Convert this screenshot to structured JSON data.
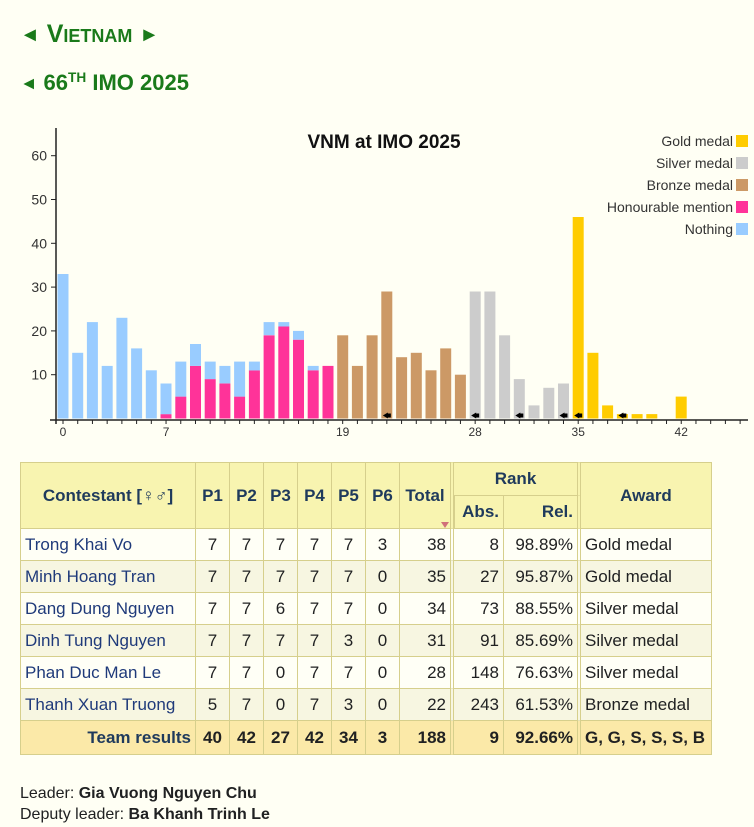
{
  "header": {
    "country": "Vietnam",
    "country_prev_arrow": "◄",
    "country_next_arrow": "►",
    "olympiad_prev_arrow": "◄",
    "olympiad_ordinal": "66",
    "olympiad_ordinal_suffix": "TH",
    "olympiad_name": "IMO 2025"
  },
  "chart_data": {
    "type": "bar",
    "stacked": true,
    "title": "VNM at IMO 2025",
    "xlabel": "",
    "ylabel": "",
    "xlim": [
      0,
      46
    ],
    "ylim": [
      0,
      65
    ],
    "x_tick_labels": [
      0,
      7,
      19,
      28,
      35,
      42
    ],
    "y_tick_labels": [
      10,
      20,
      30,
      40,
      50,
      60
    ],
    "grid": false,
    "legend_position": "top-right",
    "x": [
      0,
      1,
      2,
      3,
      4,
      5,
      6,
      7,
      8,
      9,
      10,
      11,
      12,
      13,
      14,
      15,
      16,
      17,
      18,
      19,
      20,
      21,
      22,
      23,
      24,
      25,
      26,
      27,
      28,
      29,
      30,
      31,
      32,
      33,
      34,
      35,
      36,
      37,
      38,
      39,
      40,
      41,
      42
    ],
    "series": [
      {
        "name": "Gold medal",
        "color": "#ffcc00",
        "values": [
          0,
          0,
          0,
          0,
          0,
          0,
          0,
          0,
          0,
          0,
          0,
          0,
          0,
          0,
          0,
          0,
          0,
          0,
          0,
          0,
          0,
          0,
          0,
          0,
          0,
          0,
          0,
          0,
          0,
          0,
          0,
          0,
          0,
          0,
          0,
          46,
          15,
          3,
          1,
          1,
          1,
          0,
          5
        ]
      },
      {
        "name": "Silver medal",
        "color": "#cccccc",
        "values": [
          0,
          0,
          0,
          0,
          0,
          0,
          0,
          0,
          0,
          0,
          0,
          0,
          0,
          0,
          0,
          0,
          0,
          0,
          0,
          0,
          0,
          0,
          0,
          0,
          0,
          0,
          0,
          0,
          29,
          29,
          19,
          9,
          3,
          7,
          8,
          0,
          0,
          0,
          0,
          0,
          0,
          0,
          0
        ]
      },
      {
        "name": "Bronze medal",
        "color": "#cc9966",
        "values": [
          0,
          0,
          0,
          0,
          0,
          0,
          0,
          0,
          0,
          0,
          0,
          0,
          0,
          0,
          0,
          0,
          0,
          0,
          0,
          19,
          12,
          19,
          29,
          14,
          15,
          11,
          16,
          10,
          0,
          0,
          0,
          0,
          0,
          0,
          0,
          0,
          0,
          0,
          0,
          0,
          0,
          0,
          0
        ]
      },
      {
        "name": "Honourable mention",
        "color": "#ff3399",
        "values": [
          0,
          0,
          0,
          0,
          0,
          0,
          0,
          1,
          5,
          12,
          9,
          8,
          5,
          11,
          19,
          21,
          18,
          11,
          12,
          0,
          0,
          0,
          0,
          0,
          0,
          0,
          0,
          0,
          0,
          0,
          0,
          0,
          0,
          0,
          0,
          0,
          0,
          0,
          0,
          0,
          0,
          0,
          0
        ]
      },
      {
        "name": "Nothing",
        "color": "#99ccff",
        "values": [
          33,
          15,
          22,
          12,
          23,
          16,
          11,
          7,
          8,
          5,
          4,
          4,
          8,
          2,
          3,
          1,
          2,
          1,
          0,
          0,
          0,
          0,
          0,
          0,
          0,
          0,
          0,
          0,
          0,
          0,
          0,
          0,
          0,
          0,
          0,
          0,
          0,
          0,
          0,
          0,
          0,
          0,
          0
        ]
      }
    ],
    "team_markers_at_scores": [
      22,
      28,
      31,
      34,
      35,
      38
    ]
  },
  "table": {
    "headers": {
      "contestant": "Contestant [♀♂]",
      "p1": "P1",
      "p2": "P2",
      "p3": "P3",
      "p4": "P4",
      "p5": "P5",
      "p6": "P6",
      "total": "Total",
      "rank": "Rank",
      "abs": "Abs.",
      "rel": "Rel.",
      "award": "Award"
    },
    "rows": [
      {
        "name": "Trong Khai Vo",
        "p1": "7",
        "p2": "7",
        "p3": "7",
        "p4": "7",
        "p5": "7",
        "p6": "3",
        "total": "38",
        "abs": "8",
        "rel": "98.89%",
        "award": "Gold medal"
      },
      {
        "name": "Minh Hoang Tran",
        "p1": "7",
        "p2": "7",
        "p3": "7",
        "p4": "7",
        "p5": "7",
        "p6": "0",
        "total": "35",
        "abs": "27",
        "rel": "95.87%",
        "award": "Gold medal"
      },
      {
        "name": "Dang Dung Nguyen",
        "p1": "7",
        "p2": "7",
        "p3": "6",
        "p4": "7",
        "p5": "7",
        "p6": "0",
        "total": "34",
        "abs": "73",
        "rel": "88.55%",
        "award": "Silver medal"
      },
      {
        "name": "Dinh Tung Nguyen",
        "p1": "7",
        "p2": "7",
        "p3": "7",
        "p4": "7",
        "p5": "3",
        "p6": "0",
        "total": "31",
        "abs": "91",
        "rel": "85.69%",
        "award": "Silver medal"
      },
      {
        "name": "Phan Duc Man Le",
        "p1": "7",
        "p2": "7",
        "p3": "0",
        "p4": "7",
        "p5": "7",
        "p6": "0",
        "total": "28",
        "abs": "148",
        "rel": "76.63%",
        "award": "Silver medal"
      },
      {
        "name": "Thanh Xuan Truong",
        "p1": "5",
        "p2": "7",
        "p3": "0",
        "p4": "7",
        "p5": "3",
        "p6": "0",
        "total": "22",
        "abs": "243",
        "rel": "61.53%",
        "award": "Bronze medal"
      }
    ],
    "team": {
      "label": "Team results",
      "p1": "40",
      "p2": "42",
      "p3": "27",
      "p4": "42",
      "p5": "34",
      "p6": "3",
      "total": "188",
      "abs": "9",
      "rel": "92.66%",
      "award": "G, G, S, S, S, B"
    }
  },
  "staff": {
    "leader_label": "Leader:",
    "leader_name": "Gia Vuong Nguyen Chu",
    "deputy_label": "Deputy leader:",
    "deputy_name": "Ba Khanh Trinh Le"
  }
}
